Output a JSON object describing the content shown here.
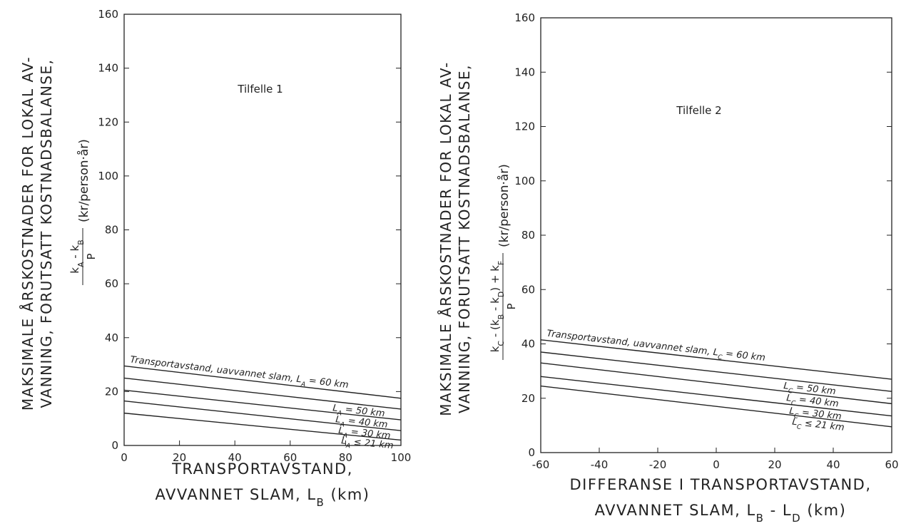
{
  "chart_data": [
    {
      "type": "line",
      "title": "Tilfelle 1",
      "ylabel_lines": [
        "MAKSIMALE ÅRSKOSTNADER FOR LOKAL AV-",
        "VANNING, FORUTSATT KOSTNADSBALANSE,"
      ],
      "ylabel_formula": {
        "numerator": "k_A - k_B",
        "denominator": "P",
        "unit": "(kr/person·år)"
      },
      "xlabel_lines": [
        "TRANSPORTAVSTAND,",
        "AVVANNET SLAM, L_B (km)"
      ],
      "xlim": [
        0,
        100
      ],
      "ylim": [
        0,
        160
      ],
      "x_ticks": [
        "0",
        "20",
        "40",
        "60",
        "80",
        "100"
      ],
      "y_ticks": [
        "0",
        "20",
        "40",
        "60",
        "80",
        "100",
        "120",
        "140",
        "160"
      ],
      "grid": false,
      "series": [
        {
          "name": "Transportavstand, uavvannet slam, L_A = 60 km",
          "x": [
            0,
            100
          ],
          "y": [
            29.5,
            17.5
          ]
        },
        {
          "name": "L_A = 50 km",
          "x": [
            0,
            100
          ],
          "y": [
            25,
            13.5
          ]
        },
        {
          "name": "L_A = 40 km",
          "x": [
            0,
            100
          ],
          "y": [
            20.5,
            9.5
          ]
        },
        {
          "name": "L_A = 30 km",
          "x": [
            0,
            100
          ],
          "y": [
            16.5,
            5.5
          ]
        },
        {
          "name": "L_A ≤ 21 km",
          "x": [
            0,
            100
          ],
          "y": [
            12,
            2
          ]
        }
      ]
    },
    {
      "type": "line",
      "title": "Tilfelle 2",
      "ylabel_lines": [
        "MAKSIMALE ÅRSKOSTNADER FOR LOKAL AV-",
        "VANNING, FORUTSATT KOSTNADSBALANSE,"
      ],
      "ylabel_formula": {
        "numerator": "k_C - (k_B - k_D) + k_F",
        "denominator": "P",
        "unit": "(kr/person·år)"
      },
      "xlabel_lines": [
        "DIFFERANSE I TRANSPORTAVSTAND,",
        "AVVANNET SLAM, L_B - L_D (km)"
      ],
      "xlim": [
        -60,
        60
      ],
      "ylim": [
        0,
        160
      ],
      "x_ticks": [
        "-60",
        "-40",
        "-20",
        "0",
        "20",
        "40",
        "60"
      ],
      "y_ticks": [
        "0",
        "20",
        "40",
        "60",
        "80",
        "100",
        "120",
        "140",
        "160"
      ],
      "grid": false,
      "series": [
        {
          "name": "Transportavstand, uavvannet slam, L_C = 60 km",
          "x": [
            -60,
            60
          ],
          "y": [
            41.5,
            27
          ]
        },
        {
          "name": "L_C = 50 km",
          "x": [
            -60,
            60
          ],
          "y": [
            37,
            22.5
          ]
        },
        {
          "name": "L_C = 40 km",
          "x": [
            -60,
            60
          ],
          "y": [
            33,
            18
          ]
        },
        {
          "name": "L_C = 30 km",
          "x": [
            -60,
            60
          ],
          "y": [
            28,
            13.5
          ]
        },
        {
          "name": "L_C ≤ 21 km",
          "x": [
            -60,
            60
          ],
          "y": [
            24.5,
            9.5
          ]
        }
      ]
    }
  ],
  "colors": {
    "ink": "#222222",
    "background": "#ffffff"
  }
}
